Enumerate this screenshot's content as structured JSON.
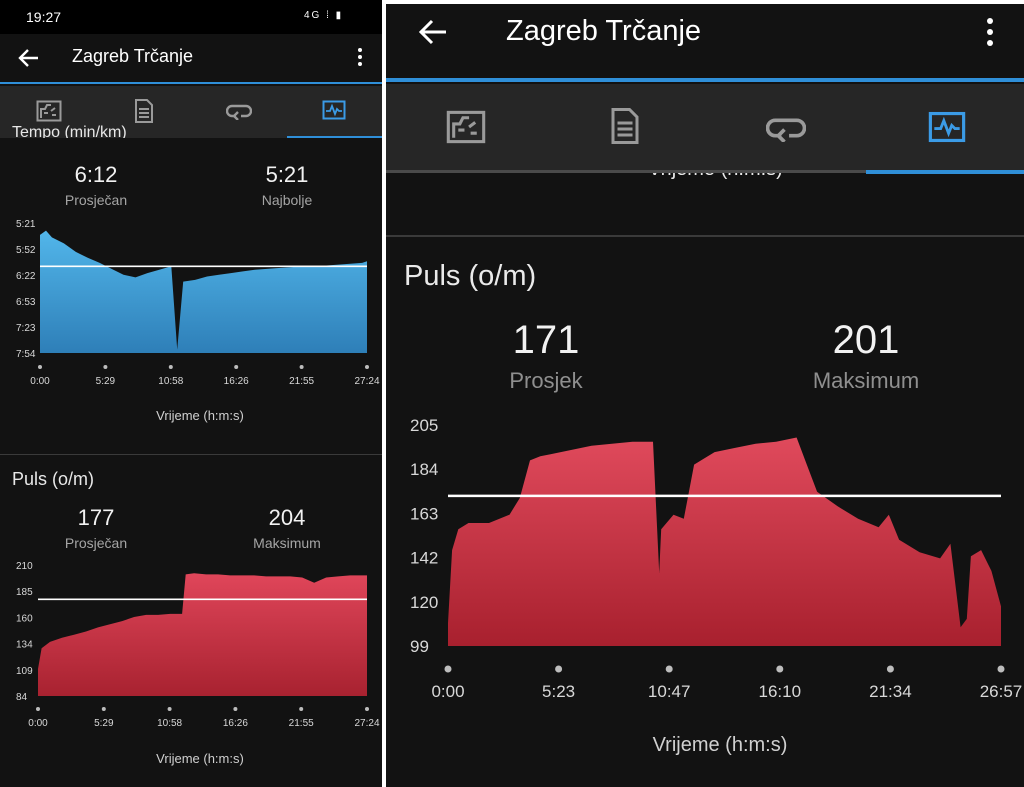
{
  "status": {
    "time": "19:27",
    "icons": "4G ⁞ ▮"
  },
  "left": {
    "title": "Zagreb Trčanje",
    "tabs": [
      {
        "icon": "route-summary-icon"
      },
      {
        "icon": "details-list-icon"
      },
      {
        "icon": "laps-loop-icon"
      },
      {
        "icon": "chart-pulse-icon",
        "active": true
      }
    ],
    "pace": {
      "title_partial": "Tempo (min/km)",
      "avg_value": "6:12",
      "avg_label": "Prosječan",
      "best_value": "5:21",
      "best_label": "Najbolje",
      "xlabel": "Vrijeme (h:m:s)"
    },
    "hr": {
      "title": "Puls (o/m)",
      "avg_value": "177",
      "avg_label": "Prosječan",
      "max_value": "204",
      "max_label": "Maksimum",
      "xlabel": "Vrijeme (h:m:s)"
    }
  },
  "right": {
    "title": "Zagreb Trčanje",
    "xlabel_partial": "Vrijeme (h:m:s)",
    "hr": {
      "title": "Puls (o/m)",
      "avg_value": "171",
      "avg_label": "Prosjek",
      "max_value": "201",
      "max_label": "Maksimum",
      "xlabel": "Vrijeme (h:m:s)"
    }
  },
  "colors": {
    "accent": "#2f8fd8",
    "pace_fill": "#4aaee0",
    "hr_fill": "#d23a4a",
    "bg": "#121212"
  },
  "chart_data": [
    {
      "type": "area",
      "name": "pace-left",
      "yticks": [
        "5:21",
        "5:52",
        "6:22",
        "6:53",
        "7:23",
        "7:54"
      ],
      "xticks": [
        "0:00",
        "5:29",
        "10:58",
        "16:26",
        "21:55",
        "27:24"
      ],
      "ylim_seconds": [
        321,
        474
      ],
      "avg_seconds": 372,
      "x": [
        0,
        0.5,
        1,
        2,
        3,
        4,
        5,
        6,
        7,
        8,
        9,
        10,
        11,
        11.5,
        12,
        13,
        14,
        15,
        16,
        17,
        18,
        19,
        20,
        21,
        22,
        23,
        24,
        25,
        26,
        27,
        27.4
      ],
      "y": [
        335,
        330,
        338,
        345,
        355,
        362,
        368,
        375,
        382,
        385,
        380,
        376,
        372,
        470,
        390,
        388,
        384,
        382,
        380,
        378,
        376,
        375,
        374,
        373,
        372,
        372,
        371,
        370,
        369,
        368,
        366
      ]
    },
    {
      "type": "area",
      "name": "hr-left",
      "yticks": [
        "84",
        "109",
        "134",
        "160",
        "185",
        "210"
      ],
      "xticks": [
        "0:00",
        "5:29",
        "10:58",
        "16:26",
        "21:55",
        "27:24"
      ],
      "ylim": [
        84,
        210
      ],
      "avg": 177,
      "x": [
        0,
        0.3,
        1,
        2,
        3,
        4,
        5,
        6,
        7,
        8,
        9,
        10,
        11,
        12,
        12.3,
        13,
        14,
        15,
        16,
        17,
        18,
        19,
        20,
        21,
        22,
        23,
        24,
        25,
        26,
        27,
        27.4
      ],
      "y": [
        110,
        130,
        136,
        140,
        143,
        146,
        150,
        153,
        156,
        160,
        162,
        162,
        163,
        163,
        201,
        202,
        201,
        201,
        200,
        200,
        200,
        199,
        199,
        199,
        198,
        193,
        198,
        199,
        200,
        200,
        200
      ]
    },
    {
      "type": "area",
      "name": "hr-right",
      "yticks": [
        "205",
        "184",
        "163",
        "142",
        "120",
        "99"
      ],
      "xticks": [
        "0:00",
        "5:23",
        "10:47",
        "16:10",
        "21:34",
        "26:57"
      ],
      "ylim": [
        99,
        205
      ],
      "avg": 171,
      "x": [
        0,
        0.2,
        0.5,
        1,
        2,
        3,
        3.5,
        4,
        4.5,
        5,
        6,
        7,
        8,
        9,
        10,
        10.3,
        10.4,
        11,
        11.5,
        12,
        12.5,
        13,
        14,
        15,
        16,
        17,
        17.5,
        18,
        19,
        20,
        21,
        21.5,
        22,
        23,
        24,
        24.5,
        25,
        25.3,
        25.5,
        26,
        26.5,
        26.97
      ],
      "y": [
        110,
        145,
        155,
        158,
        158,
        162,
        170,
        188,
        190,
        191,
        193,
        195,
        196,
        197,
        197,
        134,
        155,
        162,
        160,
        186,
        189,
        192,
        194,
        196,
        197,
        199,
        186,
        173,
        166,
        160,
        156,
        162,
        150,
        144,
        141,
        148,
        108,
        112,
        142,
        145,
        135,
        118
      ]
    }
  ]
}
